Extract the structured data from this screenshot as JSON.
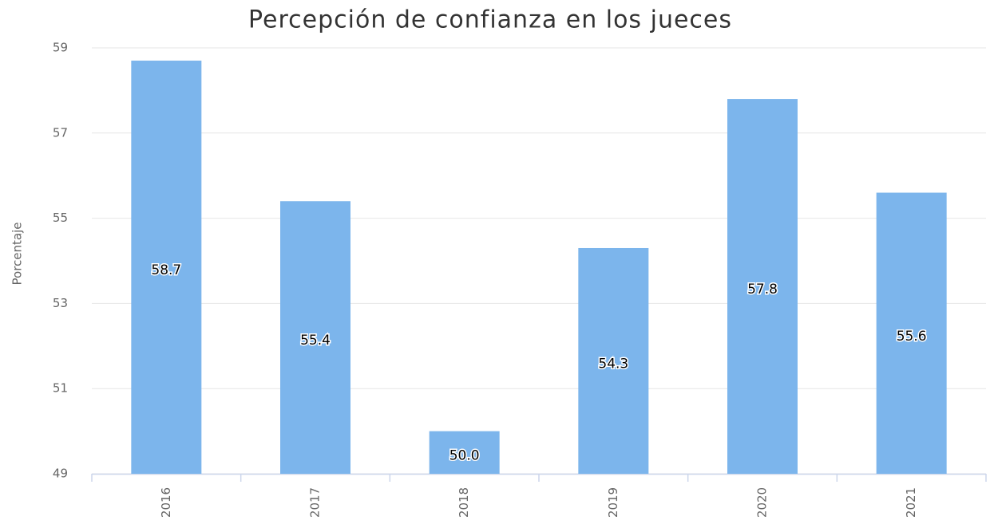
{
  "chart_data": {
    "type": "bar",
    "title": "Percepción de confianza en los jueces",
    "y_label": "Porcentaje",
    "categories": [
      "2016",
      "2017",
      "2018",
      "2019",
      "2020",
      "2021"
    ],
    "values": [
      58.7,
      55.4,
      50.0,
      54.3,
      57.8,
      55.6
    ],
    "value_labels": [
      "58.7",
      "55.4",
      "50.0",
      "54.3",
      "57.8",
      "55.6"
    ],
    "color": "#7cb5ec",
    "ylim": [
      49,
      59
    ],
    "yticks": [
      49,
      51,
      53,
      55,
      57,
      59
    ],
    "grid": true
  }
}
